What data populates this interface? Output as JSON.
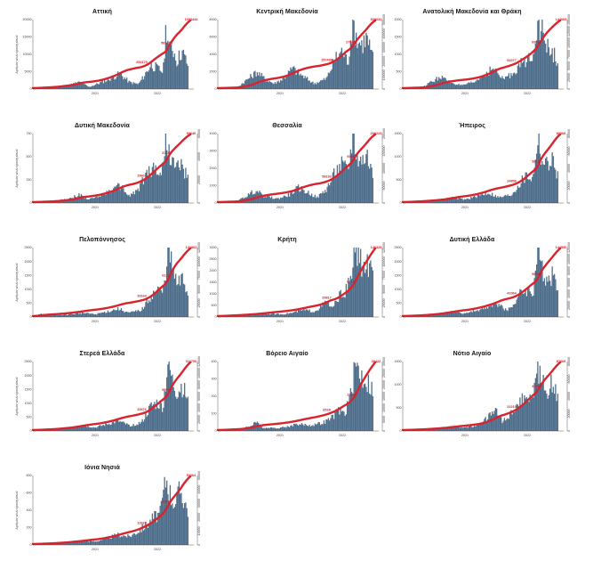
{
  "colors": {
    "bars": "#4f6f8c",
    "line": "#d9232d",
    "axis": "#333333",
    "labels": "#d22027"
  },
  "x_axis": {
    "ticks": [
      "2021",
      "2022"
    ]
  },
  "chart_data": [
    {
      "type": "bar+line",
      "title": "Αττική",
      "ylabel": "Αριθμός νέων κρουσμάτων",
      "left_ticks": [
        "0",
        "5000",
        "10000",
        "15000",
        "20000"
      ],
      "right_ticks": [],
      "end_label": "1093444",
      "mid_labels": [
        "252170",
        "581214"
      ],
      "profile": [
        [
          0.0,
          0.01
        ],
        [
          0.1,
          0.02
        ],
        [
          0.22,
          0.05
        ],
        [
          0.3,
          0.1
        ],
        [
          0.36,
          0.03
        ],
        [
          0.42,
          0.08
        ],
        [
          0.5,
          0.15
        ],
        [
          0.56,
          0.22
        ],
        [
          0.62,
          0.1
        ],
        [
          0.68,
          0.07
        ],
        [
          0.72,
          0.2
        ],
        [
          0.76,
          0.35
        ],
        [
          0.8,
          0.3
        ],
        [
          0.84,
          0.25
        ],
        [
          0.86,
          0.95
        ],
        [
          0.88,
          0.55
        ],
        [
          0.9,
          0.6
        ],
        [
          0.93,
          0.4
        ],
        [
          0.96,
          0.55
        ],
        [
          1.0,
          0.35
        ]
      ]
    },
    {
      "type": "bar+line",
      "title": "Κεντρική Μακεδονία",
      "ylabel": "",
      "left_ticks": [
        "0",
        "2000",
        "4000",
        "6000",
        "8000"
      ],
      "right_ticks": [
        "0",
        "100000",
        "200000",
        "300000",
        "400000",
        "500000"
      ],
      "end_label": "538031",
      "mid_labels": [
        "157498",
        "270617"
      ],
      "profile": [
        [
          0.0,
          0.01
        ],
        [
          0.12,
          0.02
        ],
        [
          0.25,
          0.25
        ],
        [
          0.3,
          0.15
        ],
        [
          0.36,
          0.08
        ],
        [
          0.42,
          0.15
        ],
        [
          0.48,
          0.3
        ],
        [
          0.55,
          0.18
        ],
        [
          0.62,
          0.08
        ],
        [
          0.7,
          0.15
        ],
        [
          0.76,
          0.45
        ],
        [
          0.8,
          0.55
        ],
        [
          0.84,
          0.4
        ],
        [
          0.87,
          0.98
        ],
        [
          0.9,
          0.7
        ],
        [
          0.93,
          0.65
        ],
        [
          0.96,
          0.75
        ],
        [
          1.0,
          0.45
        ]
      ]
    },
    {
      "type": "bar+line",
      "title": "Ανατολική Μακεδονία και Θράκη",
      "ylabel": "",
      "left_ticks": [
        "0",
        "500",
        "1000",
        "1500",
        "2000"
      ],
      "right_ticks": [
        "0",
        "25000",
        "50000",
        "75000",
        "100000",
        "125000",
        "150000"
      ],
      "end_label": "142065",
      "mid_labels": [
        "52077",
        "69018"
      ],
      "profile": [
        [
          0.0,
          0.01
        ],
        [
          0.12,
          0.02
        ],
        [
          0.24,
          0.18
        ],
        [
          0.3,
          0.1
        ],
        [
          0.38,
          0.05
        ],
        [
          0.46,
          0.1
        ],
        [
          0.52,
          0.2
        ],
        [
          0.58,
          0.3
        ],
        [
          0.64,
          0.15
        ],
        [
          0.7,
          0.2
        ],
        [
          0.75,
          0.35
        ],
        [
          0.8,
          0.4
        ],
        [
          0.84,
          0.55
        ],
        [
          0.87,
          0.98
        ],
        [
          0.9,
          0.8
        ],
        [
          0.93,
          0.6
        ],
        [
          0.96,
          0.55
        ],
        [
          1.0,
          0.4
        ]
      ]
    },
    {
      "type": "bar+line",
      "title": "Δυτική Μακεδονία",
      "ylabel": "Αριθμός νέων κρουσμάτων",
      "left_ticks": [
        "0",
        "250",
        "500",
        "750"
      ],
      "right_ticks": [
        "0",
        "20000",
        "40000",
        "60000"
      ],
      "end_label": "59640",
      "mid_labels": [
        "19601",
        "37150"
      ],
      "profile": [
        [
          0.0,
          0.01
        ],
        [
          0.12,
          0.02
        ],
        [
          0.22,
          0.06
        ],
        [
          0.3,
          0.12
        ],
        [
          0.36,
          0.05
        ],
        [
          0.42,
          0.1
        ],
        [
          0.5,
          0.18
        ],
        [
          0.56,
          0.25
        ],
        [
          0.62,
          0.1
        ],
        [
          0.68,
          0.2
        ],
        [
          0.74,
          0.45
        ],
        [
          0.79,
          0.5
        ],
        [
          0.83,
          0.4
        ],
        [
          0.86,
          0.98
        ],
        [
          0.89,
          0.6
        ],
        [
          0.92,
          0.5
        ],
        [
          0.95,
          0.55
        ],
        [
          1.0,
          0.35
        ]
      ]
    },
    {
      "type": "bar+line",
      "title": "Θεσσαλία",
      "ylabel": "",
      "left_ticks": [
        "0",
        "1000",
        "2000",
        "3000",
        "4000"
      ],
      "right_ticks": [
        "0",
        "50000",
        "100000",
        "150000",
        "200000"
      ],
      "end_label": "206223",
      "mid_labels": [
        "58193",
        "93817"
      ],
      "profile": [
        [
          0.0,
          0.01
        ],
        [
          0.12,
          0.02
        ],
        [
          0.24,
          0.18
        ],
        [
          0.3,
          0.1
        ],
        [
          0.38,
          0.06
        ],
        [
          0.46,
          0.12
        ],
        [
          0.52,
          0.22
        ],
        [
          0.58,
          0.15
        ],
        [
          0.64,
          0.08
        ],
        [
          0.7,
          0.2
        ],
        [
          0.76,
          0.45
        ],
        [
          0.8,
          0.55
        ],
        [
          0.84,
          0.45
        ],
        [
          0.87,
          0.98
        ],
        [
          0.9,
          0.65
        ],
        [
          0.93,
          0.6
        ],
        [
          0.96,
          0.7
        ],
        [
          1.0,
          0.4
        ]
      ]
    },
    {
      "type": "bar+line",
      "title": "Ήπειρος",
      "ylabel": "",
      "left_ticks": [
        "0",
        "500",
        "1000",
        "1500"
      ],
      "right_ticks": [
        "0",
        "20000",
        "40000",
        "60000",
        "80000"
      ],
      "end_label": "80068",
      "mid_labels": [
        "24858",
        "38153"
      ],
      "profile": [
        [
          0.0,
          0.01
        ],
        [
          0.12,
          0.02
        ],
        [
          0.24,
          0.04
        ],
        [
          0.32,
          0.08
        ],
        [
          0.4,
          0.05
        ],
        [
          0.48,
          0.1
        ],
        [
          0.55,
          0.15
        ],
        [
          0.62,
          0.08
        ],
        [
          0.7,
          0.12
        ],
        [
          0.76,
          0.3
        ],
        [
          0.8,
          0.4
        ],
        [
          0.84,
          0.35
        ],
        [
          0.87,
          0.98
        ],
        [
          0.9,
          0.6
        ],
        [
          0.93,
          0.55
        ],
        [
          0.96,
          0.65
        ],
        [
          1.0,
          0.4
        ]
      ]
    },
    {
      "type": "bar+line",
      "title": "Πελοπόννησος",
      "ylabel": "Αριθμός νέων κρουσμάτων",
      "left_ticks": [
        "0",
        "500",
        "1000",
        "1500",
        "2000",
        "2500"
      ],
      "right_ticks": [
        "0",
        "25000",
        "50000",
        "75000",
        "100000",
        "125000"
      ],
      "end_label": "133862",
      "mid_labels": [
        "33164",
        "61213"
      ],
      "profile": [
        [
          0.0,
          0.01
        ],
        [
          0.06,
          0.05
        ],
        [
          0.12,
          0.02
        ],
        [
          0.24,
          0.04
        ],
        [
          0.32,
          0.06
        ],
        [
          0.4,
          0.04
        ],
        [
          0.48,
          0.08
        ],
        [
          0.55,
          0.12
        ],
        [
          0.62,
          0.06
        ],
        [
          0.7,
          0.1
        ],
        [
          0.76,
          0.3
        ],
        [
          0.8,
          0.4
        ],
        [
          0.84,
          0.35
        ],
        [
          0.87,
          0.98
        ],
        [
          0.9,
          0.7
        ],
        [
          0.93,
          0.45
        ],
        [
          0.96,
          0.55
        ],
        [
          1.0,
          0.35
        ]
      ]
    },
    {
      "type": "bar+line",
      "title": "Κρήτη",
      "ylabel": "",
      "left_ticks": [
        "0",
        "500",
        "1000",
        "1500",
        "2000",
        "2500",
        "3000"
      ],
      "right_ticks": [
        "0",
        "25000",
        "50000",
        "75000",
        "100000",
        "125000"
      ],
      "end_label": "146329",
      "mid_labels": [
        "29817",
        "64123"
      ],
      "profile": [
        [
          0.0,
          0.01
        ],
        [
          0.12,
          0.02
        ],
        [
          0.24,
          0.03
        ],
        [
          0.32,
          0.05
        ],
        [
          0.4,
          0.04
        ],
        [
          0.48,
          0.06
        ],
        [
          0.55,
          0.1
        ],
        [
          0.62,
          0.08
        ],
        [
          0.66,
          0.14
        ],
        [
          0.7,
          0.22
        ],
        [
          0.74,
          0.12
        ],
        [
          0.78,
          0.3
        ],
        [
          0.82,
          0.35
        ],
        [
          0.86,
          0.55
        ],
        [
          0.88,
          0.98
        ],
        [
          0.91,
          0.85
        ],
        [
          0.94,
          0.7
        ],
        [
          0.97,
          0.75
        ],
        [
          1.0,
          0.6
        ]
      ]
    },
    {
      "type": "bar+line",
      "title": "Δυτική Ελλάδα",
      "ylabel": "",
      "left_ticks": [
        "0",
        "500",
        "1000",
        "1500",
        "2000",
        "2500"
      ],
      "right_ticks": [
        "0",
        "20000",
        "40000",
        "60000",
        "80000",
        "100000",
        "120000"
      ],
      "end_label": "144590",
      "mid_labels": [
        "41064",
        "58916"
      ],
      "profile": [
        [
          0.0,
          0.01
        ],
        [
          0.12,
          0.02
        ],
        [
          0.24,
          0.05
        ],
        [
          0.32,
          0.08
        ],
        [
          0.4,
          0.05
        ],
        [
          0.48,
          0.1
        ],
        [
          0.55,
          0.14
        ],
        [
          0.62,
          0.2
        ],
        [
          0.66,
          0.1
        ],
        [
          0.7,
          0.14
        ],
        [
          0.76,
          0.35
        ],
        [
          0.8,
          0.4
        ],
        [
          0.84,
          0.35
        ],
        [
          0.87,
          0.98
        ],
        [
          0.9,
          0.65
        ],
        [
          0.93,
          0.55
        ],
        [
          0.96,
          0.6
        ],
        [
          1.0,
          0.45
        ]
      ]
    },
    {
      "type": "bar+line",
      "title": "Στερεά Ελλάδα",
      "ylabel": "Αριθμός νέων κρουσμάτων",
      "left_ticks": [
        "0",
        "500",
        "1000",
        "1500",
        "2000",
        "2500"
      ],
      "right_ticks": [
        "0",
        "20000",
        "40000",
        "60000",
        "80000",
        "100000",
        "120000"
      ],
      "end_label": "116700",
      "mid_labels": [
        "33676",
        "55015"
      ],
      "profile": [
        [
          0.0,
          0.01
        ],
        [
          0.12,
          0.02
        ],
        [
          0.24,
          0.05
        ],
        [
          0.32,
          0.08
        ],
        [
          0.4,
          0.05
        ],
        [
          0.48,
          0.1
        ],
        [
          0.55,
          0.14
        ],
        [
          0.62,
          0.08
        ],
        [
          0.7,
          0.12
        ],
        [
          0.76,
          0.35
        ],
        [
          0.8,
          0.4
        ],
        [
          0.84,
          0.35
        ],
        [
          0.87,
          0.98
        ],
        [
          0.9,
          0.7
        ],
        [
          0.93,
          0.55
        ],
        [
          0.96,
          0.65
        ],
        [
          1.0,
          0.45
        ]
      ]
    },
    {
      "type": "bar+line",
      "title": "Βόρειο Αιγαίο",
      "ylabel": "",
      "left_ticks": [
        "0",
        "100",
        "200",
        "300",
        "400"
      ],
      "right_ticks": [
        "0",
        "5000",
        "10000",
        "15000",
        "20000",
        "25000",
        "30000"
      ],
      "end_label": "30422",
      "mid_labels": [
        "6528",
        "13601"
      ],
      "profile": [
        [
          0.0,
          0.01
        ],
        [
          0.12,
          0.02
        ],
        [
          0.2,
          0.06
        ],
        [
          0.24,
          0.14
        ],
        [
          0.28,
          0.05
        ],
        [
          0.36,
          0.04
        ],
        [
          0.44,
          0.06
        ],
        [
          0.52,
          0.1
        ],
        [
          0.6,
          0.08
        ],
        [
          0.68,
          0.12
        ],
        [
          0.74,
          0.2
        ],
        [
          0.78,
          0.3
        ],
        [
          0.82,
          0.25
        ],
        [
          0.86,
          0.55
        ],
        [
          0.89,
          0.98
        ],
        [
          0.92,
          0.8
        ],
        [
          0.95,
          0.75
        ],
        [
          1.0,
          0.6
        ]
      ]
    },
    {
      "type": "bar+line",
      "title": "Νότιο Αιγαίο",
      "ylabel": "",
      "left_ticks": [
        "0",
        "500",
        "1000",
        "1500"
      ],
      "right_ticks": [
        "0",
        "20000",
        "40000",
        "60000",
        "80000"
      ],
      "end_label": "87069",
      "mid_labels": [
        "22210",
        "46538"
      ],
      "profile": [
        [
          0.0,
          0.01
        ],
        [
          0.12,
          0.02
        ],
        [
          0.24,
          0.04
        ],
        [
          0.32,
          0.06
        ],
        [
          0.4,
          0.05
        ],
        [
          0.48,
          0.08
        ],
        [
          0.55,
          0.2
        ],
        [
          0.6,
          0.3
        ],
        [
          0.64,
          0.15
        ],
        [
          0.7,
          0.25
        ],
        [
          0.76,
          0.45
        ],
        [
          0.8,
          0.55
        ],
        [
          0.84,
          0.45
        ],
        [
          0.87,
          0.98
        ],
        [
          0.9,
          0.7
        ],
        [
          0.93,
          0.6
        ],
        [
          0.96,
          0.7
        ],
        [
          1.0,
          0.5
        ]
      ]
    },
    {
      "type": "bar+line",
      "title": "Ιόνια Νησιά",
      "ylabel": "Αριθμός νέων κρουσμάτων",
      "left_ticks": [
        "0",
        "200",
        "400",
        "600",
        "800"
      ],
      "right_ticks": [
        "0",
        "10000",
        "20000",
        "30000",
        "40000",
        "50000"
      ],
      "end_label": "53264",
      "mid_labels": [
        "12628",
        "23871"
      ],
      "profile": [
        [
          0.0,
          0.01
        ],
        [
          0.12,
          0.02
        ],
        [
          0.24,
          0.04
        ],
        [
          0.32,
          0.06
        ],
        [
          0.4,
          0.05
        ],
        [
          0.48,
          0.1
        ],
        [
          0.55,
          0.15
        ],
        [
          0.62,
          0.12
        ],
        [
          0.68,
          0.2
        ],
        [
          0.74,
          0.3
        ],
        [
          0.78,
          0.4
        ],
        [
          0.82,
          0.45
        ],
        [
          0.86,
          0.98
        ],
        [
          0.89,
          0.7
        ],
        [
          0.92,
          0.6
        ],
        [
          0.95,
          0.8
        ],
        [
          1.0,
          0.5
        ]
      ]
    }
  ]
}
